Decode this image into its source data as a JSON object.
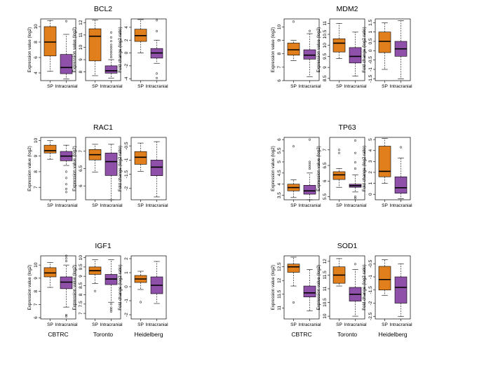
{
  "colors": {
    "sp": "#E07F1C",
    "intracranial": "#8E50A8",
    "line": "#000000"
  },
  "cohorts": [
    "CBTRC",
    "Toronto",
    "Heidelberg"
  ],
  "categories": [
    "SP",
    "Intracranial"
  ],
  "ylabels": {
    "expr": "Expression value (log2)",
    "fold": "Fold change (log2 ratio)"
  },
  "chart_data": [
    {
      "type": "box",
      "gene": "BCL2",
      "cohort": "CBTRC",
      "ylabel": "Expression value (log2)",
      "ylim": [
        3,
        11
      ],
      "yticks": [
        4,
        6,
        8,
        10
      ],
      "categories": [
        "SP",
        "Intracranial"
      ],
      "boxes": [
        {
          "min": 4.2,
          "q1": 6.2,
          "median": 8.0,
          "q3": 10.0,
          "max": 10.8,
          "outliers": []
        },
        {
          "min": 3.2,
          "q1": 3.9,
          "median": 4.7,
          "q3": 6.4,
          "max": 9.0,
          "outliers": [
            10.7
          ]
        }
      ]
    },
    {
      "type": "box",
      "gene": "BCL2",
      "cohort": "Toronto",
      "ylabel": "Expression value (log2)",
      "ylim": [
        7.3,
        12.3
      ],
      "yticks": [
        8,
        9,
        10,
        11,
        12
      ],
      "categories": [
        "SP",
        "Intracranial"
      ],
      "boxes": [
        {
          "min": 7.7,
          "q1": 8.9,
          "median": 10.9,
          "q3": 11.5,
          "max": 12.2,
          "outliers": []
        },
        {
          "min": 7.5,
          "q1": 7.9,
          "median": 8.1,
          "q3": 8.5,
          "max": 9.0,
          "outliers": [
            9.2,
            9.4,
            9.6,
            9.8,
            10.0,
            10.2,
            10.5,
            10.8,
            11.2
          ]
        }
      ]
    },
    {
      "type": "box",
      "gene": "BCL2",
      "cohort": "Heidelberg",
      "ylabel": "Fold change (log2 ratio)",
      "ylim": [
        -4.3,
        5.3
      ],
      "yticks": [
        -4,
        -2,
        0,
        2,
        4
      ],
      "categories": [
        "SP",
        "Intracranial"
      ],
      "boxes": [
        {
          "min": 0.0,
          "q1": 1.8,
          "median": 2.7,
          "q3": 3.7,
          "max": 5.2,
          "outliers": []
        },
        {
          "min": -1.6,
          "q1": -0.8,
          "median": 0.0,
          "q3": 0.7,
          "max": 2.0,
          "outliers": [
            5.1,
            3.4,
            -3.2,
            -3.9
          ]
        }
      ]
    },
    {
      "type": "box",
      "gene": "MDM2",
      "cohort": "CBTRC",
      "ylabel": "Expression value (log2)",
      "ylim": [
        6.0,
        10.6
      ],
      "yticks": [
        6,
        7,
        8,
        9,
        10
      ],
      "categories": [
        "SP",
        "Intracranial"
      ],
      "boxes": [
        {
          "min": 7.5,
          "q1": 7.9,
          "median": 8.3,
          "q3": 8.8,
          "max": 9.0,
          "outliers": [
            10.4
          ]
        },
        {
          "min": 6.3,
          "q1": 7.6,
          "median": 7.9,
          "q3": 8.3,
          "max": 9.5,
          "outliers": [
            9.7
          ]
        }
      ]
    },
    {
      "type": "box",
      "gene": "MDM2",
      "cohort": "Toronto",
      "ylabel": "Expression value (log2)",
      "ylim": [
        8.4,
        11.2
      ],
      "yticks": [
        8.5,
        9.0,
        9.5,
        10.0,
        10.5,
        11.0
      ],
      "categories": [
        "SP",
        "Intracranial"
      ],
      "boxes": [
        {
          "min": 9.4,
          "q1": 9.7,
          "median": 10.1,
          "q3": 10.3,
          "max": 11.0,
          "outliers": []
        },
        {
          "min": 8.6,
          "q1": 9.2,
          "median": 9.5,
          "q3": 9.9,
          "max": 10.6,
          "outliers": []
        }
      ]
    },
    {
      "type": "box",
      "gene": "MDM2",
      "cohort": "Heidelberg",
      "ylabel": "Fold change (log2 ratio)",
      "ylim": [
        -1.6,
        1.7
      ],
      "yticks": [
        -1.5,
        -1.0,
        -0.5,
        0.0,
        0.5,
        1.0,
        1.5
      ],
      "categories": [
        "SP",
        "Intracranial"
      ],
      "boxes": [
        {
          "min": -1.0,
          "q1": -0.1,
          "median": 0.5,
          "q3": 1.0,
          "max": 1.5,
          "outliers": []
        },
        {
          "min": -1.5,
          "q1": -0.3,
          "median": 0.1,
          "q3": 0.5,
          "max": 1.6,
          "outliers": []
        }
      ]
    },
    {
      "type": "box",
      "gene": "RAC1",
      "cohort": "CBTRC",
      "ylabel": "Expression value (log2)",
      "ylim": [
        6.2,
        10.2
      ],
      "yticks": [
        7,
        8,
        9,
        10
      ],
      "categories": [
        "SP",
        "Intracranial"
      ],
      "boxes": [
        {
          "min": 8.8,
          "q1": 9.2,
          "median": 9.35,
          "q3": 9.7,
          "max": 10.0,
          "outliers": []
        },
        {
          "min": 8.4,
          "q1": 8.7,
          "median": 9.0,
          "q3": 9.3,
          "max": 9.7,
          "outliers": [
            8.0,
            7.6,
            7.2,
            6.9,
            6.7
          ]
        }
      ]
    },
    {
      "type": "box",
      "gene": "RAC1",
      "cohort": "Toronto",
      "ylabel": "Expression value (log2)",
      "ylim": [
        5.6,
        7.4
      ],
      "yticks": [
        6.0,
        6.5,
        7.0
      ],
      "categories": [
        "SP",
        "Intracranial"
      ],
      "boxes": [
        {
          "min": 6.4,
          "q1": 6.75,
          "median": 6.9,
          "q3": 7.05,
          "max": 7.2,
          "outliers": []
        },
        {
          "min": 5.6,
          "q1": 6.3,
          "median": 6.7,
          "q3": 6.95,
          "max": 7.2,
          "outliers": []
        }
      ]
    },
    {
      "type": "box",
      "gene": "RAC1",
      "cohort": "Heidelberg",
      "ylabel": "Fold change (log2 ratio)",
      "ylim": [
        -2.4,
        -0.2
      ],
      "yticks": [
        -2.0,
        -1.5,
        -1.0,
        -0.5
      ],
      "categories": [
        "SP",
        "Intracranial"
      ],
      "boxes": [
        {
          "min": -1.4,
          "q1": -1.15,
          "median": -0.9,
          "q3": -0.7,
          "max": -0.4,
          "outliers": []
        },
        {
          "min": -2.3,
          "q1": -1.55,
          "median": -1.25,
          "q3": -1.0,
          "max": -0.35,
          "outliers": []
        }
      ]
    },
    {
      "type": "box",
      "gene": "TP63",
      "cohort": "CBTRC",
      "ylabel": "Expression value (log2)",
      "ylim": [
        3.3,
        6.1
      ],
      "yticks": [
        3.5,
        4.0,
        4.5,
        5.0,
        5.5,
        6.0
      ],
      "categories": [
        "SP",
        "Intracranial"
      ],
      "boxes": [
        {
          "min": 3.4,
          "q1": 3.7,
          "median": 3.85,
          "q3": 4.0,
          "max": 4.2,
          "outliers": [
            5.7
          ]
        },
        {
          "min": 3.3,
          "q1": 3.55,
          "median": 3.7,
          "q3": 3.95,
          "max": 4.5,
          "outliers": [
            4.7,
            4.8,
            4.9,
            5.0,
            6.0
          ]
        }
      ]
    },
    {
      "type": "box",
      "gene": "TP63",
      "cohort": "Toronto",
      "ylabel": "Expression value (log2)",
      "ylim": [
        5.4,
        7.4
      ],
      "yticks": [
        5.5,
        6.0,
        6.5,
        7.0
      ],
      "categories": [
        "SP",
        "Intracranial"
      ],
      "boxes": [
        {
          "min": 5.8,
          "q1": 6.05,
          "median": 6.2,
          "q3": 6.3,
          "max": 6.4,
          "outliers": [
            6.9,
            7.0
          ]
        },
        {
          "min": 5.65,
          "q1": 5.8,
          "median": 5.85,
          "q3": 5.9,
          "max": 6.2,
          "outliers": [
            5.45,
            5.5,
            6.4,
            6.6,
            6.9,
            7.3
          ]
        }
      ]
    },
    {
      "type": "box",
      "gene": "TP63",
      "cohort": "Heidelberg",
      "ylabel": "Fold change (log2 ratio)",
      "ylim": [
        -0.5,
        5.2
      ],
      "yticks": [
        0,
        1,
        2,
        3,
        4,
        5
      ],
      "categories": [
        "SP",
        "Intracranial"
      ],
      "boxes": [
        {
          "min": 1.0,
          "q1": 1.6,
          "median": 2.1,
          "q3": 4.4,
          "max": 5.1,
          "outliers": []
        },
        {
          "min": -0.4,
          "q1": 0.1,
          "median": 0.6,
          "q3": 1.6,
          "max": 3.3,
          "outliers": [
            4.3
          ]
        }
      ]
    },
    {
      "type": "box",
      "gene": "IGF1",
      "cohort": "CBTRC",
      "ylabel": "Expression value (log2)",
      "ylim": [
        5.9,
        10.7
      ],
      "yticks": [
        6,
        7,
        8,
        9,
        10
      ],
      "categories": [
        "SP",
        "Intracranial"
      ],
      "boxes": [
        {
          "min": 8.3,
          "q1": 9.1,
          "median": 9.4,
          "q3": 9.8,
          "max": 10.2,
          "outliers": []
        },
        {
          "min": 6.8,
          "q1": 8.2,
          "median": 8.7,
          "q3": 9.1,
          "max": 10.0,
          "outliers": [
            6.1,
            6.2,
            10.3,
            10.5,
            10.7
          ]
        }
      ]
    },
    {
      "type": "box",
      "gene": "IGF1",
      "cohort": "Toronto",
      "ylabel": "Expression value (log2)",
      "ylim": [
        6.7,
        10.1
      ],
      "yticks": [
        7.0,
        7.5,
        8.0,
        8.5,
        9.0,
        9.5,
        10.0
      ],
      "categories": [
        "SP",
        "Intracranial"
      ],
      "boxes": [
        {
          "min": 8.6,
          "q1": 9.1,
          "median": 9.3,
          "q3": 9.5,
          "max": 9.9,
          "outliers": [
            8.2
          ]
        },
        {
          "min": 7.6,
          "q1": 8.55,
          "median": 8.85,
          "q3": 9.1,
          "max": 9.9,
          "outliers": [
            7.1,
            7.2,
            7.3,
            7.5
          ]
        }
      ]
    },
    {
      "type": "box",
      "gene": "IGF1",
      "cohort": "Heidelberg",
      "ylabel": "Fold change (log2 ratio)",
      "ylim": [
        -2.3,
        2.2
      ],
      "yticks": [
        -2,
        -1,
        0,
        1,
        2
      ],
      "categories": [
        "SP",
        "Intracranial"
      ],
      "boxes": [
        {
          "min": -0.2,
          "q1": 0.3,
          "median": 0.55,
          "q3": 0.8,
          "max": 1.1,
          "outliers": [
            -1.1
          ]
        },
        {
          "min": -1.2,
          "q1": -0.5,
          "median": 0.1,
          "q3": 0.7,
          "max": 1.8,
          "outliers": []
        }
      ]
    },
    {
      "type": "box",
      "gene": "SOD1",
      "cohort": "CBTRC",
      "ylabel": "Expression value (log2)",
      "ylim": [
        10.6,
        12.9
      ],
      "yticks": [
        11.0,
        11.5,
        12.0,
        12.5
      ],
      "categories": [
        "SP",
        "Intracranial"
      ],
      "boxes": [
        {
          "min": 11.8,
          "q1": 12.3,
          "median": 12.5,
          "q3": 12.6,
          "max": 12.85,
          "outliers": [
            11.2
          ]
        },
        {
          "min": 10.9,
          "q1": 11.4,
          "median": 11.55,
          "q3": 11.8,
          "max": 12.4,
          "outliers": []
        }
      ]
    },
    {
      "type": "box",
      "gene": "SOD1",
      "cohort": "Toronto",
      "ylabel": "Expression value (log2)",
      "ylim": [
        9.9,
        12.2
      ],
      "yticks": [
        10.0,
        10.5,
        11.0,
        11.5,
        12.0
      ],
      "categories": [
        "SP",
        "Intracranial"
      ],
      "boxes": [
        {
          "min": 11.1,
          "q1": 11.2,
          "median": 11.5,
          "q3": 11.8,
          "max": 12.1,
          "outliers": []
        },
        {
          "min": 10.0,
          "q1": 10.55,
          "median": 10.8,
          "q3": 11.05,
          "max": 11.7,
          "outliers": [
            11.9
          ]
        }
      ]
    },
    {
      "type": "box",
      "gene": "SOD1",
      "cohort": "Heidelberg",
      "ylabel": "Fold change (log2 ratio)",
      "ylim": [
        -2.6,
        -0.2
      ],
      "yticks": [
        -2.5,
        -2.0,
        -1.5,
        -1.0,
        -0.5
      ],
      "categories": [
        "SP",
        "Intracranial"
      ],
      "boxes": [
        {
          "min": -1.7,
          "q1": -1.5,
          "median": -1.1,
          "q3": -0.6,
          "max": -0.35,
          "outliers": []
        },
        {
          "min": -2.5,
          "q1": -2.0,
          "median": -1.4,
          "q3": -1.0,
          "max": -0.5,
          "outliers": []
        }
      ]
    }
  ]
}
